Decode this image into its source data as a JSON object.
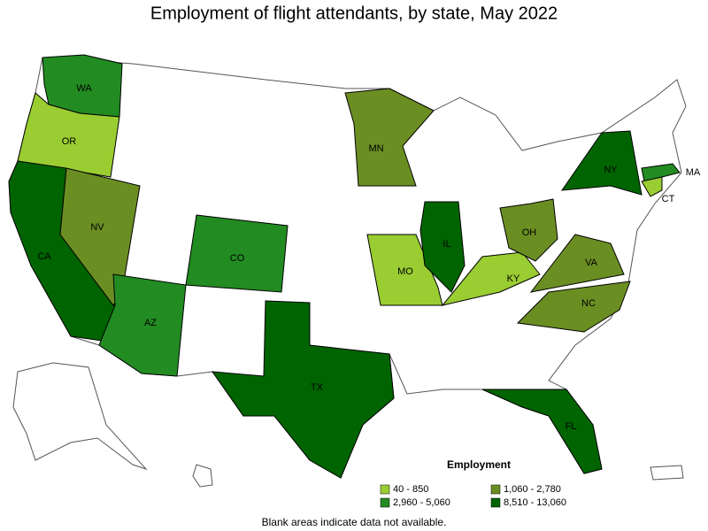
{
  "title": "Employment of flight attendants, by state, May 2022",
  "legend": {
    "title": "Employment",
    "items": [
      {
        "label": "40 - 850",
        "color": "#9acd32"
      },
      {
        "label": "1,060 - 2,780",
        "color": "#6b8e23"
      },
      {
        "label": "2,960 - 5,060",
        "color": "#228b22"
      },
      {
        "label": "8,510 - 13,060",
        "color": "#006400"
      }
    ]
  },
  "states": [
    {
      "label": "WA",
      "color": "#228b22"
    },
    {
      "label": "OR",
      "color": "#9acd32"
    },
    {
      "label": "CA",
      "color": "#006400"
    },
    {
      "label": "NV",
      "color": "#6b8e23"
    },
    {
      "label": "AZ",
      "color": "#228b22"
    },
    {
      "label": "CO",
      "color": "#228b22"
    },
    {
      "label": "TX",
      "color": "#006400"
    },
    {
      "label": "MN",
      "color": "#6b8e23"
    },
    {
      "label": "MO",
      "color": "#9acd32"
    },
    {
      "label": "IL",
      "color": "#006400"
    },
    {
      "label": "KY",
      "color": "#9acd32"
    },
    {
      "label": "OH",
      "color": "#6b8e23"
    },
    {
      "label": "VA",
      "color": "#6b8e23"
    },
    {
      "label": "NC",
      "color": "#6b8e23"
    },
    {
      "label": "NY",
      "color": "#006400"
    },
    {
      "label": "FL",
      "color": "#006400"
    },
    {
      "label": "MA",
      "color": "#228b22"
    },
    {
      "label": "CT",
      "color": "#9acd32"
    }
  ],
  "note": "Blank areas indicate data not available."
}
